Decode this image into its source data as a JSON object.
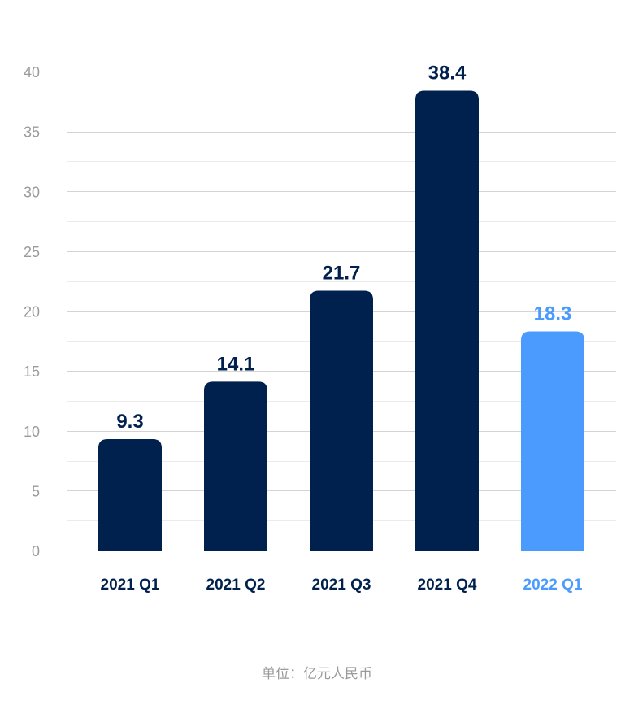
{
  "chart_data": {
    "type": "bar",
    "categories": [
      "2021 Q1",
      "2021 Q2",
      "2021 Q3",
      "2021 Q4",
      "2022 Q1"
    ],
    "values": [
      9.3,
      14.1,
      21.7,
      38.4,
      18.3
    ],
    "value_labels": [
      "9.3",
      "14.1",
      "21.7",
      "38.4",
      "18.3"
    ],
    "ylim": [
      0,
      40
    ],
    "y_ticks": [
      0,
      5,
      10,
      15,
      20,
      25,
      30,
      35,
      40
    ],
    "y_tick_labels": [
      "0",
      "5",
      "10",
      "15",
      "20",
      "25",
      "30",
      "35",
      "40"
    ],
    "minor_grid_step": 2.5,
    "grid": true,
    "legend": "none",
    "title": "",
    "xlabel": "",
    "ylabel": "",
    "highlight_index": 4,
    "colors": {
      "bar": "#00214d",
      "highlight": "#4b9bff",
      "tick_text": "#9a9a9a",
      "gridline": "#d4d4d4"
    }
  },
  "footer": {
    "unit_text": "单位：亿元人民币"
  }
}
